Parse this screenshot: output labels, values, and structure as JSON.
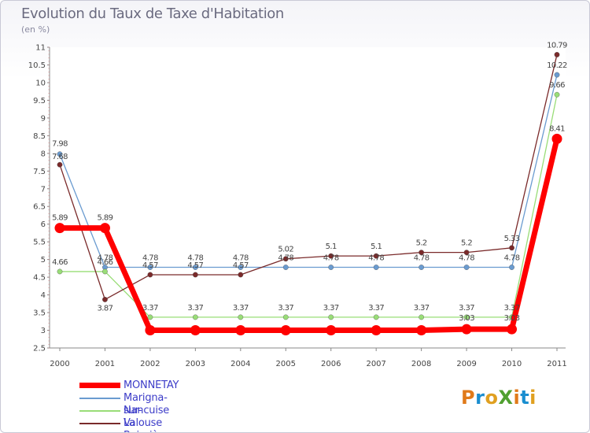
{
  "chart_data": {
    "type": "line",
    "title": "Evolution du Taux de Taxe d'Habitation",
    "subtitle": "(en %)",
    "categories": [
      "2000",
      "2001",
      "2002",
      "2003",
      "2004",
      "2005",
      "2006",
      "2007",
      "2008",
      "2009",
      "2010",
      "2011"
    ],
    "ylim": [
      2.5,
      11
    ],
    "yticks": [
      "2.5",
      "3",
      "3.5",
      "4",
      "4.5",
      "5",
      "5.5",
      "6",
      "6.5",
      "7",
      "7.5",
      "8",
      "8.5",
      "9",
      "9.5",
      "10",
      "10.5",
      "11"
    ],
    "series": [
      {
        "name": "MONNETAY",
        "color": "#ff0000",
        "values": [
          5.89,
          5.89,
          3.0,
          3.0,
          3.0,
          3.0,
          3.0,
          3.0,
          3.0,
          3.03,
          3.03,
          8.41
        ],
        "labels": [
          "5.89",
          "5.89",
          "",
          "",
          "",
          "",
          "",
          "",
          "",
          "",
          "",
          "8.41"
        ]
      },
      {
        "name": "Marigna-sur-Valouse",
        "color": "#6a9bd0",
        "values": [
          7.98,
          4.78,
          4.78,
          4.78,
          4.78,
          4.78,
          4.78,
          4.78,
          4.78,
          4.78,
          4.78,
          10.22
        ],
        "labels": [
          "7.98",
          "4.78",
          "4.78",
          "4.78",
          "4.78",
          "4.78",
          "4.78",
          "4.78",
          "4.78",
          "4.78",
          "4.78",
          "10.22"
        ]
      },
      {
        "name": "Nancuise",
        "color": "#99dd77",
        "values": [
          4.66,
          4.66,
          3.37,
          3.37,
          3.37,
          3.37,
          3.37,
          3.37,
          3.37,
          3.37,
          3.37,
          9.66
        ],
        "labels": [
          "4.66",
          "4.66",
          "3.37",
          "3.37",
          "3.37",
          "3.37",
          "3.37",
          "3.37",
          "3.37",
          "3.37",
          "3.37",
          "9.66"
        ]
      },
      {
        "name": "La Boissière",
        "color": "#7a2a2a",
        "values": [
          7.68,
          3.87,
          4.57,
          4.57,
          4.57,
          5.02,
          5.1,
          5.1,
          5.2,
          5.2,
          5.33,
          10.79
        ],
        "labels": [
          "7.68",
          "3.87",
          "4.57",
          "4.57",
          "4.57",
          "5.02",
          "5.1",
          "5.1",
          "5.2",
          "5.2",
          "5.33",
          "10.79"
        ]
      }
    ],
    "extra_labels": [
      "3.03",
      "3.03"
    ]
  },
  "legend": {
    "items": [
      {
        "name": "MONNETAY"
      },
      {
        "name": "Marigna-sur-Valouse"
      },
      {
        "name": "Nancuise"
      },
      {
        "name": "La Boissière"
      }
    ]
  },
  "logo": {
    "text": "ProXiti"
  }
}
